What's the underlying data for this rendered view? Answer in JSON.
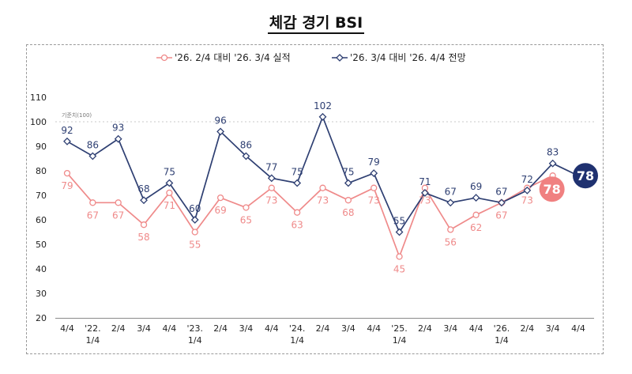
{
  "title": "체감 경기 BSI",
  "chart_data": {
    "type": "line",
    "title": "체감 경기 BSI",
    "categories": [
      "4/4",
      "'22. 1/4",
      "2/4",
      "3/4",
      "4/4",
      "'23. 1/4",
      "2/4",
      "3/4",
      "4/4",
      "'24. 1/4",
      "2/4",
      "3/4",
      "4/4",
      "'25. 1/4",
      "2/4",
      "3/4",
      "4/4",
      "'26. 1/4",
      "2/4",
      "3/4",
      "4/4"
    ],
    "category_lines": [
      [
        "4/4"
      ],
      [
        "'22.",
        "1/4"
      ],
      [
        "2/4"
      ],
      [
        "3/4"
      ],
      [
        "4/4"
      ],
      [
        "'23.",
        "1/4"
      ],
      [
        "2/4"
      ],
      [
        "3/4"
      ],
      [
        "4/4"
      ],
      [
        "'24.",
        "1/4"
      ],
      [
        "2/4"
      ],
      [
        "3/4"
      ],
      [
        "4/4"
      ],
      [
        "'25.",
        "1/4"
      ],
      [
        "2/4"
      ],
      [
        "3/4"
      ],
      [
        "4/4"
      ],
      [
        "'26.",
        "1/4"
      ],
      [
        "2/4"
      ],
      [
        "3/4"
      ],
      [
        "4/4"
      ]
    ],
    "ylim": [
      20,
      110
    ],
    "yticks": [
      20,
      30,
      40,
      50,
      60,
      70,
      80,
      90,
      100,
      110
    ],
    "grid": false,
    "legend_position": "top-center",
    "reference_line": {
      "value": 100,
      "label": "기준치(100)"
    },
    "series": [
      {
        "name": "'26. 2/4 대비 '26. 3/4 실적",
        "color": "#ef8a8a",
        "marker": "circle",
        "values": [
          79,
          67,
          67,
          58,
          71,
          55,
          69,
          65,
          73,
          63,
          73,
          68,
          73,
          45,
          73,
          56,
          62,
          67,
          73,
          78,
          null
        ],
        "highlight": {
          "index": 19,
          "label": "78",
          "color": "#f08080"
        }
      },
      {
        "name": "'26. 3/4 대비 '26. 4/4 전망",
        "color": "#2e3f72",
        "marker": "diamond",
        "values": [
          92,
          86,
          93,
          68,
          75,
          60,
          96,
          86,
          77,
          75,
          102,
          75,
          79,
          55,
          71,
          67,
          69,
          67,
          72,
          83,
          78
        ],
        "highlight": {
          "index": 20,
          "label": "78",
          "color": "#1f3170"
        }
      }
    ]
  }
}
